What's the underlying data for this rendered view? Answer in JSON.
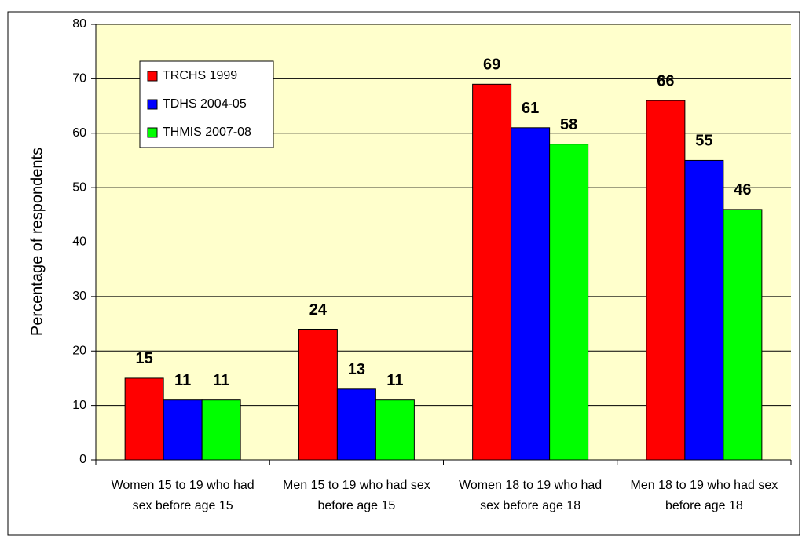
{
  "chart_data": {
    "type": "bar",
    "ylabel": "Percentage of respondents",
    "categories": [
      "Women 15 to 19 who had sex before age 15",
      "Men 15 to 19 who had sex before age 15",
      "Women 18 to 19 who had sex before age 18",
      "Men 18 to 19 who had sex before age 18"
    ],
    "series": [
      {
        "name": "TRCHS 1999",
        "color": "#ff0000",
        "values": [
          15,
          24,
          69,
          66
        ]
      },
      {
        "name": "TDHS 2004-05",
        "color": "#0000ff",
        "values": [
          11,
          13,
          61,
          55
        ]
      },
      {
        "name": "THMIS 2007-08",
        "color": "#00ff00",
        "values": [
          11,
          11,
          58,
          46
        ]
      }
    ],
    "ylim": [
      0,
      80
    ],
    "yticks": [
      0,
      10,
      20,
      30,
      40,
      50,
      60,
      70,
      80
    ],
    "grid": true,
    "legend": "top-left",
    "plot_background": "#ffffcc",
    "data_labels": true
  }
}
